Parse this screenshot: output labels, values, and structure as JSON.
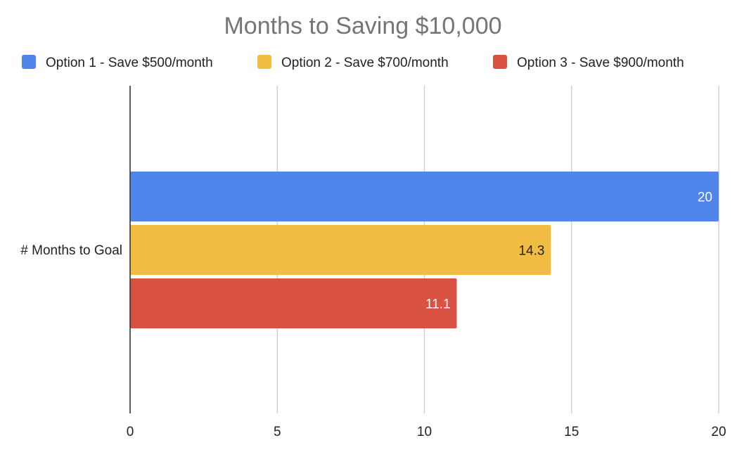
{
  "chart_data": {
    "type": "bar",
    "orientation": "horizontal",
    "title": "Months to Saving $10,000",
    "categories": [
      "# Months to Goal"
    ],
    "series": [
      {
        "name": "Option 1 - Save $500/month",
        "values": [
          20
        ],
        "color": "#5085EC",
        "label_color": "#ffffff"
      },
      {
        "name": "Option 2 - Save $700/month",
        "values": [
          14.3
        ],
        "color": "#F1BC42",
        "label_color": "#222222"
      },
      {
        "name": "Option 3 - Save $900/month",
        "values": [
          11.1
        ],
        "color": "#D95140",
        "label_color": "#ffffff"
      }
    ],
    "data_labels": [
      "20",
      "14.3",
      "11.1"
    ],
    "xlim": [
      0,
      20
    ],
    "x_ticks": [
      0,
      5,
      10,
      15,
      20
    ],
    "xlabel": "",
    "ylabel": "",
    "grid": true,
    "legend_position": "top",
    "colors": {
      "grid": "#cccccc",
      "axis": "#333333",
      "title": "#757575"
    }
  }
}
